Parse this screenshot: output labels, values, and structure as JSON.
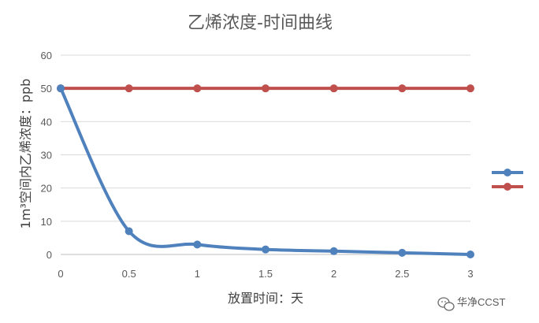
{
  "chart_data": {
    "type": "line",
    "title": "乙烯浓度-时间曲线",
    "xlabel": "放置时间：天",
    "ylabel": "1m³空间内乙烯浓度：ppb",
    "x": [
      0,
      0.5,
      1,
      1.5,
      2,
      2.5,
      3
    ],
    "x_tick_labels": [
      "0",
      "0.5",
      "1",
      "1.5",
      "2",
      "2.5",
      "3"
    ],
    "xlim": [
      0,
      3
    ],
    "ylim": [
      0,
      60
    ],
    "y_ticks": [
      0,
      10,
      20,
      30,
      40,
      50,
      60
    ],
    "grid": true,
    "legend_position": "right",
    "series": [
      {
        "values": [
          50,
          7,
          3,
          1.5,
          1,
          0.5,
          0
        ],
        "color": "#4F81BD",
        "smooth": true
      },
      {
        "values": [
          50,
          50,
          50,
          50,
          50,
          50,
          50
        ],
        "color": "#C0504D",
        "smooth": false
      }
    ]
  },
  "watermark": {
    "text": "华净CCST",
    "icon": "wechat-icon"
  }
}
